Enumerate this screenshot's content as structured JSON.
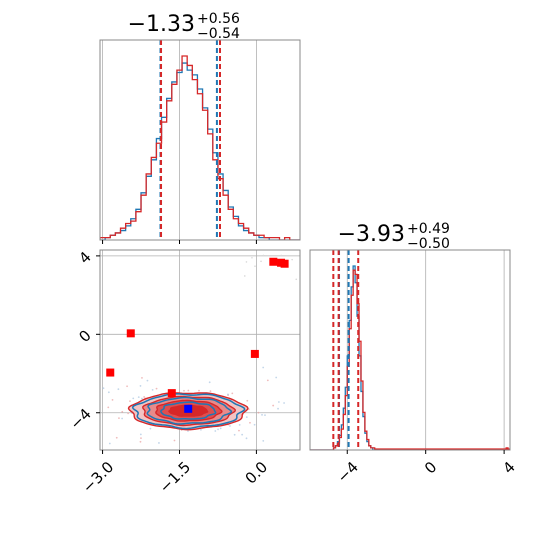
{
  "chart_data": {
    "type": "corner",
    "colors": {
      "blue": "#1f77b4",
      "red": "#d62728",
      "marker_blue": "#0000ff",
      "marker_red": "#ff0000",
      "grid": "#b0b0b0"
    },
    "panels": [
      {
        "id": "marginal_param1",
        "type": "histogram",
        "title_value": "−1.33",
        "title_upper": "+0.56",
        "title_lower": "−0.54",
        "xlim": [
          -3.05,
          0.85
        ],
        "grid": true,
        "bin_edges_start": -3.05,
        "bin_width": 0.1,
        "series": [
          {
            "name": "blue",
            "color": "#1f77b4",
            "counts": [
              0,
              1,
              2,
              3,
              4,
              6,
              9,
              13,
              20,
              27,
              34,
              43,
              52,
              60,
              67,
              71,
              75,
              72,
              70,
              64,
              56,
              47,
              37,
              28,
              21,
              14,
              10,
              6,
              4,
              3,
              2,
              1,
              1,
              0,
              0,
              0,
              0,
              0,
              0
            ]
          },
          {
            "name": "red",
            "color": "#d62728",
            "counts": [
              1,
              1,
              2,
              3,
              5,
              7,
              8,
              12,
              19,
              28,
              35,
              41,
              50,
              59,
              66,
              72,
              78,
              74,
              68,
              62,
              55,
              45,
              34,
              26,
              19,
              13,
              9,
              7,
              5,
              3,
              2,
              2,
              1,
              1,
              1,
              0,
              1,
              0,
              0
            ]
          }
        ],
        "quantile_lines": [
          {
            "x": -1.87,
            "color": "#1f77b4"
          },
          {
            "x": -1.86,
            "color": "#d62728"
          },
          {
            "x": -0.77,
            "color": "#1f77b4"
          },
          {
            "x": -0.71,
            "color": "#d62728"
          }
        ]
      },
      {
        "id": "joint",
        "type": "contour_scatter",
        "xlim": [
          -3.05,
          0.85
        ],
        "ylim": [
          -5.9,
          4.3
        ],
        "x_ticks": [
          -3.0,
          -1.5,
          0.0
        ],
        "x_tick_labels": [
          "−3.0",
          "−1.5",
          "0.0"
        ],
        "y_ticks": [
          -4,
          0,
          4
        ],
        "y_tick_labels": [
          "−4",
          "0",
          "4"
        ],
        "grid": true,
        "density_center": [
          -1.33,
          -3.9
        ],
        "density_sigma": [
          0.55,
          0.45
        ],
        "blue_markers": [
          {
            "x": -1.33,
            "y": -3.8
          }
        ],
        "red_markers": [
          {
            "x": 0.33,
            "y": 3.7
          },
          {
            "x": 0.48,
            "y": 3.65
          },
          {
            "x": 0.55,
            "y": 3.6
          },
          {
            "x": -2.45,
            "y": 0.05
          },
          {
            "x": -2.85,
            "y": -1.95
          },
          {
            "x": -1.65,
            "y": -3.0
          },
          {
            "x": -0.03,
            "y": -1.0
          }
        ]
      },
      {
        "id": "marginal_param2",
        "type": "histogram",
        "title_value": "−3.93",
        "title_upper": "+0.49",
        "title_lower": "−0.50",
        "xlim": [
          -5.9,
          4.3
        ],
        "x_ticks": [
          -4,
          0,
          4
        ],
        "x_tick_labels": [
          "−4",
          "0",
          "4"
        ],
        "grid": true,
        "bin_edges_start": -5.9,
        "bin_width": 0.1,
        "series": [
          {
            "name": "blue",
            "color": "#1f77b4",
            "counts": [
              0,
              0,
              0,
              0,
              0,
              0,
              0,
              0,
              0,
              0,
              0,
              0,
              1,
              2,
              4,
              7,
              12,
              20,
              30,
              45,
              62,
              78,
              88,
              80,
              64,
              45,
              28,
              16,
              8,
              4,
              2,
              1,
              0,
              0,
              0
            ]
          },
          {
            "name": "red",
            "color": "#d62728",
            "counts": [
              0,
              0,
              0,
              0,
              0,
              0,
              0,
              0,
              0,
              0,
              0,
              0,
              1,
              2,
              3,
              6,
              10,
              17,
              26,
              40,
              58,
              74,
              86,
              84,
              70,
              52,
              33,
              18,
              9,
              5,
              2,
              1,
              1,
              0,
              0
            ]
          }
        ],
        "tail_counts_red": [
          {
            "x": 4.15,
            "c": 1
          }
        ],
        "quantile_lines": [
          {
            "x": -4.42,
            "color": "#1f77b4"
          },
          {
            "x": -4.44,
            "color": "#d62728"
          },
          {
            "x": -3.93,
            "color": "#1f77b4"
          },
          {
            "x": -3.44,
            "color": "#d62728"
          },
          {
            "x": -4.71,
            "color": "#d62728"
          }
        ]
      }
    ]
  }
}
